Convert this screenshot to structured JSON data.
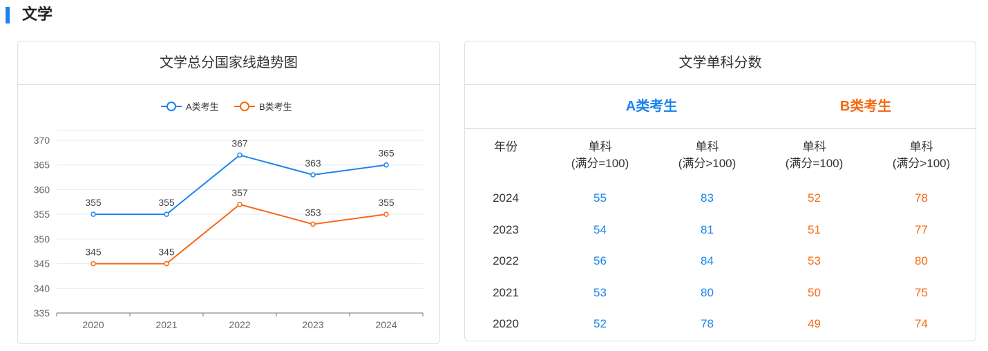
{
  "section": {
    "title": "文学"
  },
  "chart_card": {
    "title": "文学总分国家线趋势图"
  },
  "chart_data": {
    "type": "line",
    "title": "文学总分国家线趋势图",
    "categories": [
      "2020",
      "2021",
      "2022",
      "2023",
      "2024"
    ],
    "series": [
      {
        "name": "A类考生",
        "values": [
          355,
          355,
          367,
          363,
          365
        ],
        "color": "#1a84ee"
      },
      {
        "name": "B类考生",
        "values": [
          345,
          345,
          357,
          353,
          355
        ],
        "color": "#f56a14"
      }
    ],
    "ylim": [
      335,
      370
    ],
    "yticks": [
      335,
      340,
      345,
      350,
      355,
      360,
      365,
      370
    ],
    "grid": true,
    "legend_position": "top-center",
    "data_labels": true
  },
  "table_card": {
    "title": "文学单科分数",
    "group_a": "A类考生",
    "group_b": "B类考生",
    "headers": {
      "year": "年份",
      "c1": [
        "单科",
        "(满分=100)"
      ],
      "c2": [
        "单科",
        "(满分>100)"
      ],
      "c3": [
        "单科",
        "(满分=100)"
      ],
      "c4": [
        "单科",
        "(满分>100)"
      ]
    },
    "rows": [
      {
        "year": "2024",
        "a1": "55",
        "a2": "83",
        "b1": "52",
        "b2": "78"
      },
      {
        "year": "2023",
        "a1": "54",
        "a2": "81",
        "b1": "51",
        "b2": "77"
      },
      {
        "year": "2022",
        "a1": "56",
        "a2": "84",
        "b1": "53",
        "b2": "80"
      },
      {
        "year": "2021",
        "a1": "53",
        "a2": "80",
        "b1": "50",
        "b2": "75"
      },
      {
        "year": "2020",
        "a1": "52",
        "a2": "78",
        "b1": "49",
        "b2": "74"
      }
    ],
    "colors": {
      "a": "#1a84ee",
      "b": "#f56a14"
    }
  }
}
